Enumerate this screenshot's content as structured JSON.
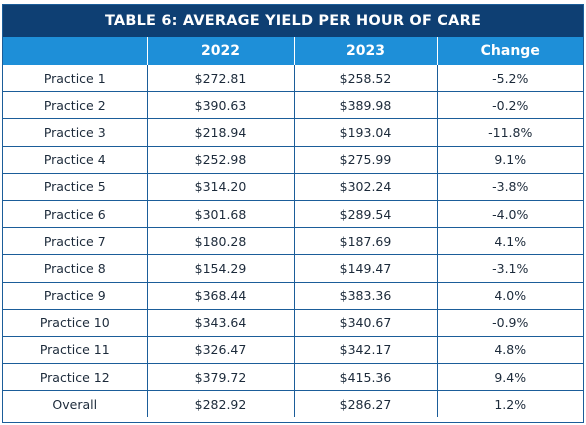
{
  "table": {
    "title": "TABLE 6: AVERAGE YIELD PER HOUR OF CARE",
    "headers": [
      "",
      "2022",
      "2023",
      "Change"
    ],
    "rows": [
      [
        "Practice 1",
        "$272.81",
        "$258.52",
        "-5.2%"
      ],
      [
        "Practice 2",
        "$390.63",
        "$389.98",
        "-0.2%"
      ],
      [
        "Practice 3",
        "$218.94",
        "$193.04",
        "-11.8%"
      ],
      [
        "Practice 4",
        "$252.98",
        "$275.99",
        "9.1%"
      ],
      [
        "Practice 5",
        "$314.20",
        "$302.24",
        "-3.8%"
      ],
      [
        "Practice 6",
        "$301.68",
        "$289.54",
        "-4.0%"
      ],
      [
        "Practice 7",
        "$180.28",
        "$187.69",
        "4.1%"
      ],
      [
        "Practice 8",
        "$154.29",
        "$149.47",
        "-3.1%"
      ],
      [
        "Practice 9",
        "$368.44",
        "$383.36",
        "4.0%"
      ],
      [
        "Practice 10",
        "$343.64",
        "$340.67",
        "-0.9%"
      ],
      [
        "Practice 11",
        "$326.47",
        "$342.17",
        "4.8%"
      ],
      [
        "Practice 12",
        "$379.72",
        "$415.36",
        "9.4%"
      ],
      [
        "Overall",
        "$282.92",
        "$286.27",
        "1.2%"
      ]
    ],
    "colors": {
      "title_bg": "#0e3f73",
      "header_bg": "#1e8fd8",
      "border": "#1b5d99"
    }
  }
}
